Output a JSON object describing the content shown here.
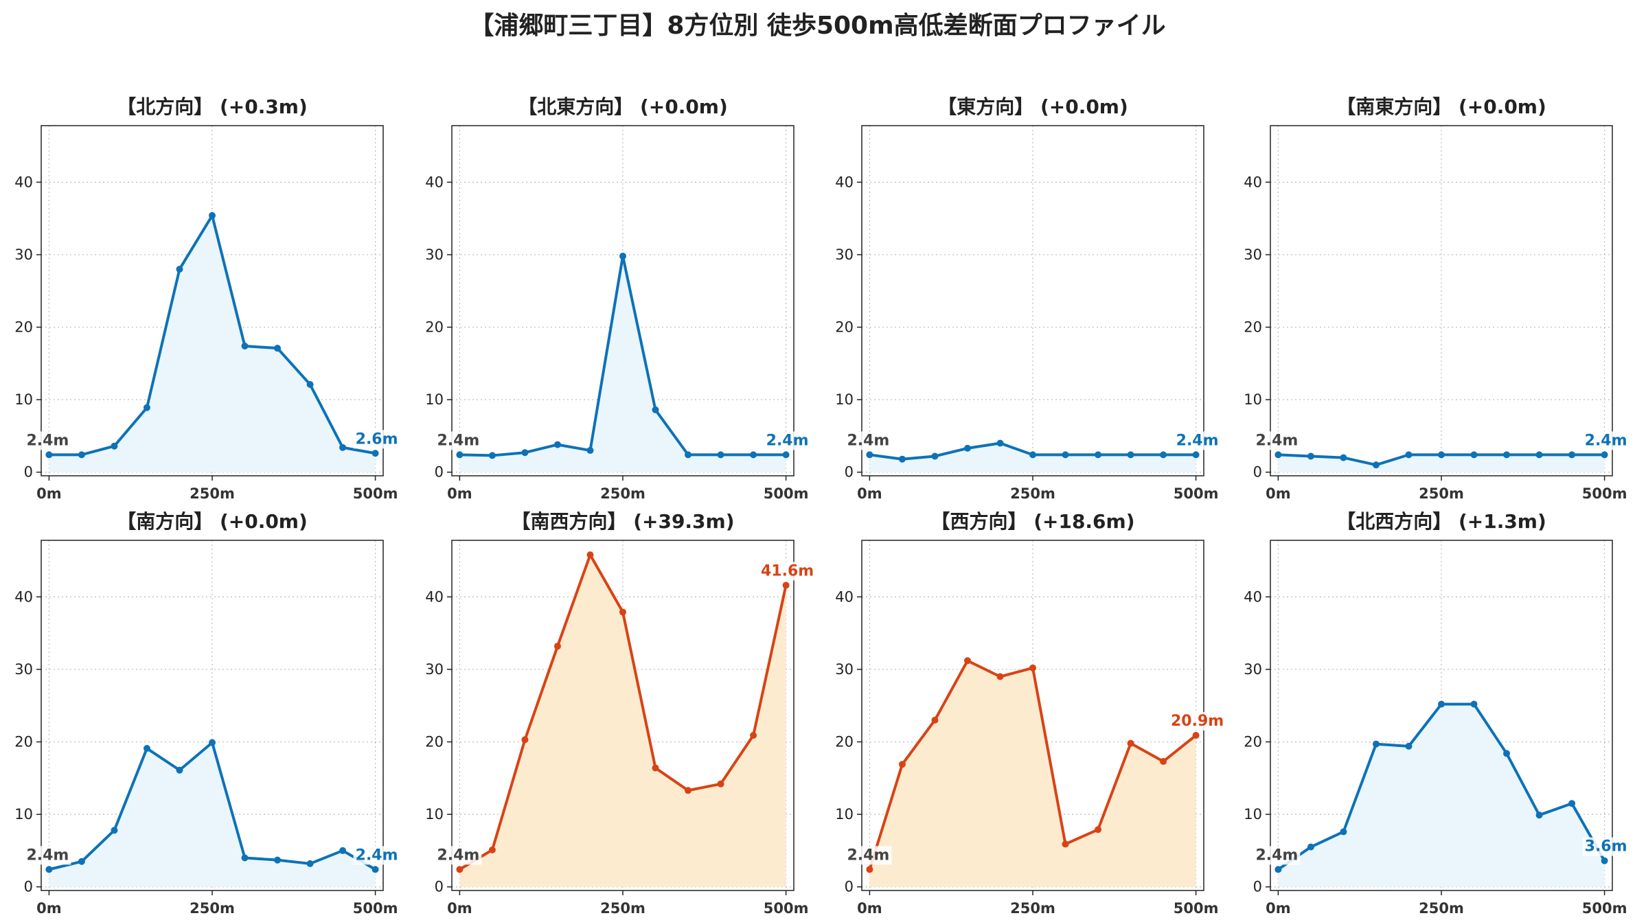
{
  "figure": {
    "title": "【浦郷町三丁目】8方位別 徒歩500m高低差断面プロファイル"
  },
  "style": {
    "low_color": "#0d72b8",
    "low_fill": "#eaf6fc",
    "high_color": "#d84315",
    "high_fill": "#fdebd0",
    "grid_color": "#bbbbbb",
    "label_gray": "#444444"
  },
  "chart_data": [
    {
      "type": "area",
      "title": "【北方向】 (+0.3m)",
      "x": [
        0,
        50,
        100,
        150,
        200,
        250,
        300,
        350,
        400,
        450,
        500
      ],
      "y": [
        2.4,
        2.4,
        3.6,
        8.9,
        28.0,
        35.4,
        17.4,
        17.1,
        12.1,
        3.4,
        2.6
      ],
      "xticks": [
        "0m",
        "250m",
        "500m"
      ],
      "yticks": [
        0,
        10,
        20,
        30,
        40
      ],
      "ylim": [
        -0.5,
        47.8
      ],
      "xlim": [
        -12,
        512
      ],
      "start_label": "2.4m",
      "end_label": "2.6m",
      "theme": "low",
      "grid": true
    },
    {
      "type": "area",
      "title": "【北東方向】 (+0.0m)",
      "x": [
        0,
        50,
        100,
        150,
        200,
        250,
        300,
        350,
        400,
        450,
        500
      ],
      "y": [
        2.4,
        2.3,
        2.7,
        3.8,
        3.0,
        29.8,
        8.6,
        2.4,
        2.4,
        2.4,
        2.4
      ],
      "xticks": [
        "0m",
        "250m",
        "500m"
      ],
      "yticks": [
        0,
        10,
        20,
        30,
        40
      ],
      "ylim": [
        -0.5,
        47.8
      ],
      "xlim": [
        -12,
        512
      ],
      "start_label": "2.4m",
      "end_label": "2.4m",
      "theme": "low",
      "grid": true
    },
    {
      "type": "area",
      "title": "【東方向】 (+0.0m)",
      "x": [
        0,
        50,
        100,
        150,
        200,
        250,
        300,
        350,
        400,
        450,
        500
      ],
      "y": [
        2.4,
        1.8,
        2.2,
        3.3,
        4.0,
        2.4,
        2.4,
        2.4,
        2.4,
        2.4,
        2.4
      ],
      "xticks": [
        "0m",
        "250m",
        "500m"
      ],
      "yticks": [
        0,
        10,
        20,
        30,
        40
      ],
      "ylim": [
        -0.5,
        47.8
      ],
      "xlim": [
        -12,
        512
      ],
      "start_label": "2.4m",
      "end_label": "2.4m",
      "theme": "low",
      "grid": true
    },
    {
      "type": "area",
      "title": "【南東方向】 (+0.0m)",
      "x": [
        0,
        50,
        100,
        150,
        200,
        250,
        300,
        350,
        400,
        450,
        500
      ],
      "y": [
        2.4,
        2.2,
        2.0,
        1.0,
        2.4,
        2.4,
        2.4,
        2.4,
        2.4,
        2.4,
        2.4
      ],
      "xticks": [
        "0m",
        "250m",
        "500m"
      ],
      "yticks": [
        0,
        10,
        20,
        30,
        40
      ],
      "ylim": [
        -0.5,
        47.8
      ],
      "xlim": [
        -12,
        512
      ],
      "start_label": "2.4m",
      "end_label": "2.4m",
      "theme": "low",
      "grid": true
    },
    {
      "type": "area",
      "title": "【南方向】 (+0.0m)",
      "x": [
        0,
        50,
        100,
        150,
        200,
        250,
        300,
        350,
        400,
        450,
        500
      ],
      "y": [
        2.4,
        3.5,
        7.8,
        19.1,
        16.1,
        19.9,
        4.0,
        3.7,
        3.2,
        5.0,
        2.4
      ],
      "xticks": [
        "0m",
        "250m",
        "500m"
      ],
      "yticks": [
        0,
        10,
        20,
        30,
        40
      ],
      "ylim": [
        -0.5,
        47.8
      ],
      "xlim": [
        -12,
        512
      ],
      "start_label": "2.4m",
      "end_label": "2.4m",
      "theme": "low",
      "grid": true
    },
    {
      "type": "area",
      "title": "【南西方向】 (+39.3m)",
      "x": [
        0,
        50,
        100,
        150,
        200,
        250,
        300,
        350,
        400,
        450,
        500
      ],
      "y": [
        2.4,
        5.1,
        20.3,
        33.2,
        45.8,
        37.9,
        16.4,
        13.3,
        14.2,
        20.9,
        41.6
      ],
      "xticks": [
        "0m",
        "250m",
        "500m"
      ],
      "yticks": [
        0,
        10,
        20,
        30,
        40
      ],
      "ylim": [
        -0.5,
        47.8
      ],
      "xlim": [
        -12,
        512
      ],
      "start_label": "2.4m",
      "end_label": "41.6m",
      "theme": "high",
      "grid": true
    },
    {
      "type": "area",
      "title": "【西方向】 (+18.6m)",
      "x": [
        0,
        50,
        100,
        150,
        200,
        250,
        300,
        350,
        400,
        450,
        500
      ],
      "y": [
        2.4,
        16.9,
        23.0,
        31.2,
        29.0,
        30.2,
        5.9,
        7.9,
        19.8,
        17.3,
        20.9
      ],
      "xticks": [
        "0m",
        "250m",
        "500m"
      ],
      "yticks": [
        0,
        10,
        20,
        30,
        40
      ],
      "ylim": [
        -0.5,
        47.8
      ],
      "xlim": [
        -12,
        512
      ],
      "start_label": "2.4m",
      "end_label": "20.9m",
      "theme": "high",
      "grid": true
    },
    {
      "type": "area",
      "title": "【北西方向】 (+1.3m)",
      "x": [
        0,
        50,
        100,
        150,
        200,
        250,
        300,
        350,
        400,
        450,
        500
      ],
      "y": [
        2.4,
        5.5,
        7.6,
        19.7,
        19.4,
        25.2,
        25.2,
        18.4,
        9.9,
        11.5,
        3.6
      ],
      "xticks": [
        "0m",
        "250m",
        "500m"
      ],
      "yticks": [
        0,
        10,
        20,
        30,
        40
      ],
      "ylim": [
        -0.5,
        47.8
      ],
      "xlim": [
        -12,
        512
      ],
      "start_label": "2.4m",
      "end_label": "3.6m",
      "theme": "low",
      "grid": true
    }
  ]
}
